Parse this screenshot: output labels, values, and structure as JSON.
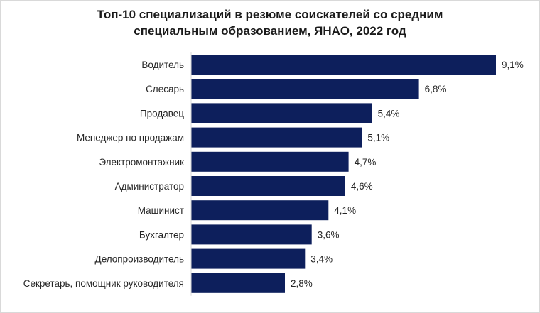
{
  "chart_data": {
    "type": "bar",
    "orientation": "horizontal",
    "title_line1": "Топ-10 специализаций в резюме соискателей со средним",
    "title_line2": "специальным образованием, ЯНАО, 2022 год",
    "categories": [
      "Водитель",
      "Слесарь",
      "Продавец",
      "Менеджер по продажам",
      "Электромонтажник",
      "Администратор",
      "Машинист",
      "Бухгалтер",
      "Делопроизводитель",
      "Секретарь, помощник руководителя"
    ],
    "values": [
      9.1,
      6.8,
      5.4,
      5.1,
      4.7,
      4.6,
      4.1,
      3.6,
      3.4,
      2.8
    ],
    "value_labels": [
      "9,1%",
      "6,8%",
      "5,4%",
      "5,1%",
      "4,7%",
      "4,6%",
      "4,1%",
      "3,6%",
      "3,4%",
      "2,8%"
    ],
    "xlim": [
      0,
      9.1
    ],
    "bar_color": "#0d1f5c",
    "grid": false,
    "legend": "none"
  }
}
